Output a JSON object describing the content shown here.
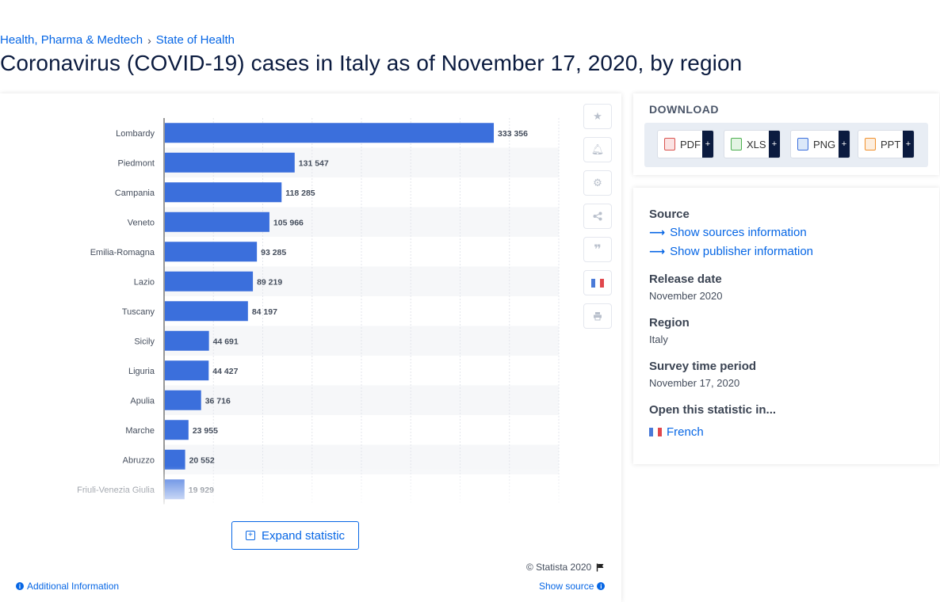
{
  "breadcrumb": {
    "item1": "Health, Pharma & Medtech",
    "sep": "›",
    "item2": "State of Health"
  },
  "page_title": "Coronavirus (COVID-19) cases in Italy as of November 17, 2020, by region",
  "expand_label": "Expand statistic",
  "copyright": "© Statista 2020",
  "additional_info": "Additional Information",
  "show_source": "Show source",
  "download": {
    "title": "DOWNLOAD",
    "buttons": [
      {
        "label": "PDF",
        "plus": "+"
      },
      {
        "label": "XLS",
        "plus": "+"
      },
      {
        "label": "PNG",
        "plus": "+"
      },
      {
        "label": "PPT",
        "plus": "+"
      }
    ]
  },
  "info": {
    "source_label": "Source",
    "show_sources": "Show sources information",
    "show_publisher": "Show publisher information",
    "release_label": "Release date",
    "release_value": "November 2020",
    "region_label": "Region",
    "region_value": "Italy",
    "survey_label": "Survey time period",
    "survey_value": "November 17, 2020",
    "open_label": "Open this statistic in...",
    "french": "French"
  },
  "icons": [
    "star-icon",
    "bell-icon",
    "gear-icon",
    "share-icon",
    "quote-icon",
    "french-flag-icon",
    "print-icon"
  ],
  "colors": {
    "bar": "#3b6fdc",
    "accent": "#0666e5",
    "title": "#0b1b3f"
  },
  "chart_data": {
    "type": "bar",
    "orientation": "horizontal",
    "categories": [
      "Lombardy",
      "Piedmont",
      "Campania",
      "Veneto",
      "Emilia-Romagna",
      "Lazio",
      "Tuscany",
      "Sicily",
      "Liguria",
      "Apulia",
      "Marche",
      "Abruzzo",
      "Friuli-Venezia Giulia"
    ],
    "values": [
      333356,
      131547,
      118285,
      105966,
      93285,
      89219,
      84197,
      44691,
      44427,
      36716,
      23955,
      20552,
      19929
    ],
    "value_labels": [
      "333 356",
      "131 547",
      "118 285",
      "105 966",
      "93 285",
      "89 219",
      "84 197",
      "44 691",
      "44 427",
      "36 716",
      "23 955",
      "20 552",
      "19 929"
    ],
    "xlim": [
      0,
      400000
    ],
    "grid": true,
    "legend": "none"
  }
}
